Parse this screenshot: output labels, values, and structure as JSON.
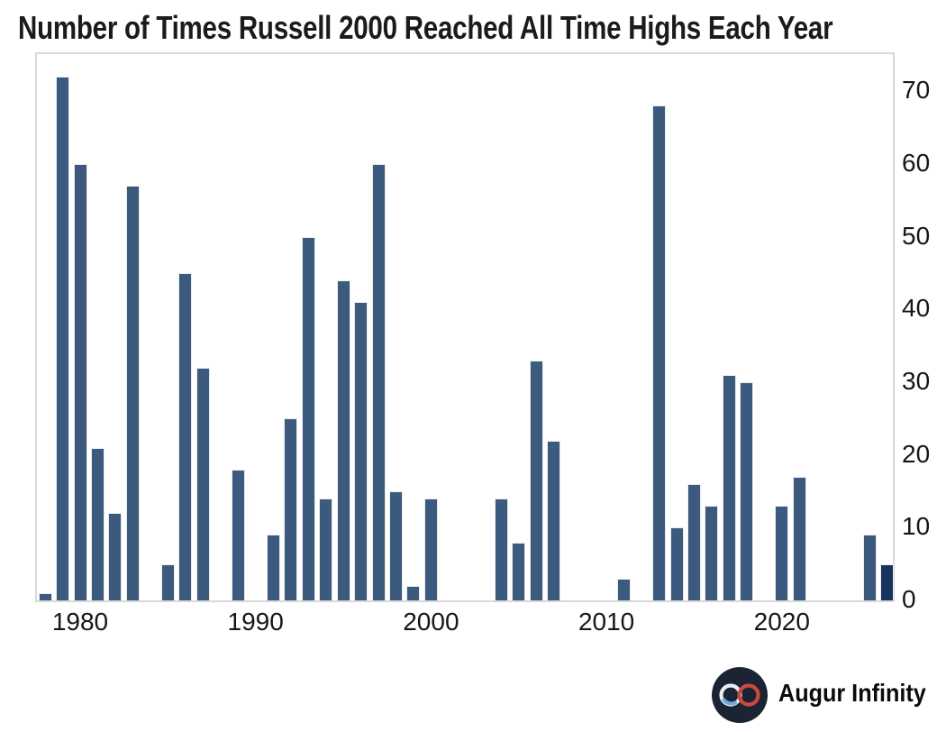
{
  "chart_data": {
    "type": "bar",
    "title": "Number of Times Russell 2000 Reached All Time Highs Each Year",
    "years": [
      1978,
      1979,
      1980,
      1981,
      1982,
      1983,
      1984,
      1985,
      1986,
      1987,
      1988,
      1989,
      1990,
      1991,
      1992,
      1993,
      1994,
      1995,
      1996,
      1997,
      1998,
      1999,
      2000,
      2001,
      2002,
      2003,
      2004,
      2005,
      2006,
      2007,
      2008,
      2009,
      2010,
      2011,
      2012,
      2013,
      2014,
      2015,
      2016,
      2017,
      2018,
      2019,
      2020,
      2021,
      2022,
      2023,
      2024,
      2025,
      2026
    ],
    "values": [
      1,
      72,
      60,
      21,
      12,
      57,
      0,
      5,
      45,
      32,
      0,
      18,
      0,
      9,
      25,
      50,
      14,
      44,
      41,
      60,
      15,
      2,
      14,
      0,
      0,
      0,
      14,
      8,
      33,
      22,
      0,
      0,
      0,
      3,
      0,
      68,
      10,
      16,
      13,
      31,
      30,
      0,
      13,
      17,
      0,
      0,
      0,
      9,
      5
    ],
    "bar_color": "#3C5A7E",
    "highlight_year": 2026,
    "highlight_color": "#16335E",
    "bar_edge_color": "#e8ebee",
    "spine_color": "#d9d9d9",
    "tick_color": "#161616",
    "yticks": [
      0,
      10,
      20,
      30,
      40,
      50,
      60,
      70
    ],
    "xticks": [
      1980,
      1990,
      2000,
      2010,
      2020
    ],
    "ylim": [
      0,
      75
    ],
    "y_axis_side": "right",
    "grid": false,
    "legend": null
  },
  "branding": {
    "logo_text": "Augur Infinity",
    "logo_bg": "#1a2433",
    "logo_left_loop": "#e9eef4",
    "logo_left_accent": "#6fa8dc",
    "logo_right_loop": "#cf4840"
  }
}
